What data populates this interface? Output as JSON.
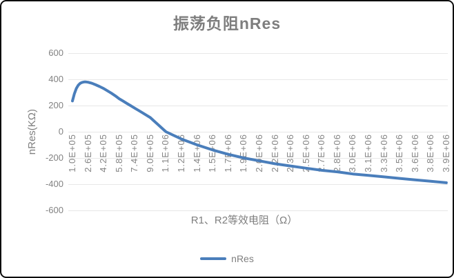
{
  "chart_data": {
    "type": "line",
    "title": "振荡负阻nRes",
    "xlabel": "R1、R2等效电阻（Ω）",
    "ylabel": "nRes(KΩ)",
    "legend_position": "bottom",
    "grid": "horizontal",
    "line_color": "#4a7ebb",
    "title_color": "#7e7e7e",
    "ylim": [
      -600,
      600
    ],
    "y_ticks": [
      600,
      400,
      200,
      0,
      -200,
      -400,
      -600
    ],
    "x_tick_labels": [
      "1.0E+05",
      "2.6E+05",
      "4.2E+05",
      "5.8E+05",
      "7.4E+05",
      "9.0E+05",
      "1.1E+06",
      "1.2E+06",
      "1.4E+06",
      "1.5E+06",
      "1.7E+06",
      "1.9E+06",
      "2.0E+06",
      "2.2E+06",
      "2.3E+06",
      "2.5E+06",
      "2.7E+06",
      "2.8E+06",
      "3.0E+06",
      "3.1E+06",
      "3.3E+06",
      "3.5E+06",
      "3.6E+06",
      "3.8E+06",
      "3.9E+06"
    ],
    "x_axis_start": 100000,
    "x_tick_step": 160000,
    "series": [
      {
        "name": "nRes",
        "x": [
          100000,
          120000,
          140000,
          160000,
          180000,
          200000,
          220000,
          240000,
          260000,
          300000,
          340000,
          380000,
          420000,
          460000,
          500000,
          540000,
          580000,
          620000,
          660000,
          700000,
          740000,
          780000,
          820000,
          860000,
          900000,
          940000,
          980000,
          1020000,
          1060000,
          1220000,
          1380000,
          1540000,
          1700000,
          1860000,
          2020000,
          2180000,
          2340000,
          2500000,
          2660000,
          2820000,
          2980000,
          3140000,
          3300000,
          3460000,
          3620000,
          3780000,
          3940000
        ],
        "y": [
          235,
          290,
          330,
          356,
          370,
          377,
          380,
          380,
          378,
          370,
          358,
          345,
          330,
          312,
          294,
          274,
          252,
          234,
          216,
          198,
          180,
          162,
          144,
          126,
          108,
          81,
          54,
          27,
          0,
          -56,
          -100,
          -139,
          -172,
          -200,
          -222,
          -244,
          -261,
          -278,
          -294,
          -306,
          -322,
          -333,
          -344,
          -356,
          -367,
          -378,
          -389
        ]
      }
    ]
  }
}
